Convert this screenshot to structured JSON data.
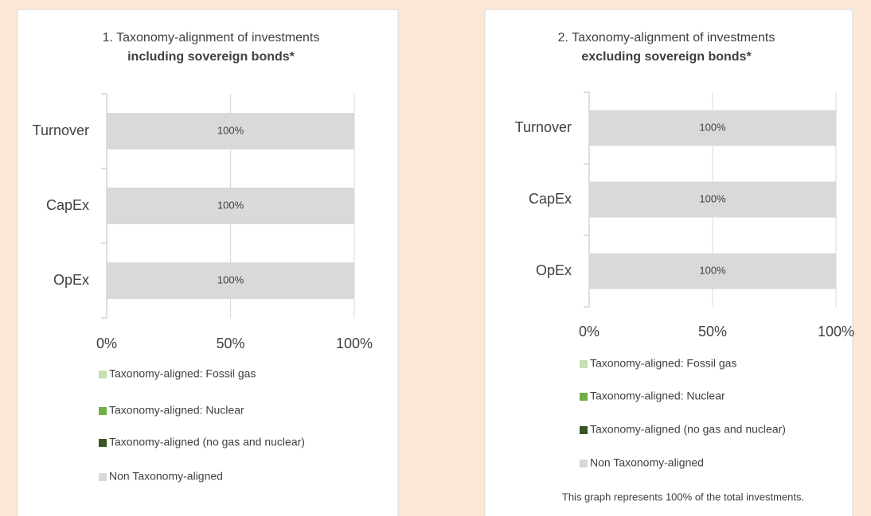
{
  "chart_data": [
    {
      "type": "stacked-bar-horizontal",
      "title": "1. Taxonomy-alignment of investments",
      "subtitle": "including sovereign bonds*",
      "categories": [
        "Turnover",
        "CapEx",
        "OpEx"
      ],
      "series": [
        {
          "name": "Taxonomy-aligned: Fossil gas",
          "color": "#c5e0b3",
          "values": [
            0,
            0,
            0
          ]
        },
        {
          "name": "Taxonomy-aligned: Nuclear",
          "color": "#70ad47",
          "values": [
            0,
            0,
            0
          ]
        },
        {
          "name": "Taxonomy-aligned (no gas and nuclear)",
          "color": "#375623",
          "values": [
            0,
            0,
            0
          ]
        },
        {
          "name": "Non Taxonomy-aligned",
          "color": "#d9d9d9",
          "values": [
            100,
            100,
            100
          ],
          "value_labels": [
            "100%",
            "100%",
            "100%"
          ]
        }
      ],
      "xlim": [
        0,
        100
      ],
      "xticks": [
        {
          "value": 0,
          "label": "0%"
        },
        {
          "value": 50,
          "label": "50%"
        },
        {
          "value": 100,
          "label": "100%"
        }
      ],
      "grid": true
    },
    {
      "type": "stacked-bar-horizontal",
      "title": "2. Taxonomy-alignment of investments",
      "subtitle": "excluding sovereign bonds*",
      "categories": [
        "Turnover",
        "CapEx",
        "OpEx"
      ],
      "series": [
        {
          "name": "Taxonomy-aligned: Fossil gas",
          "color": "#c5e0b3",
          "values": [
            0,
            0,
            0
          ]
        },
        {
          "name": "Taxonomy-aligned: Nuclear",
          "color": "#70ad47",
          "values": [
            0,
            0,
            0
          ]
        },
        {
          "name": "Taxonomy-aligned (no gas and nuclear)",
          "color": "#375623",
          "values": [
            0,
            0,
            0
          ]
        },
        {
          "name": "Non Taxonomy-aligned",
          "color": "#d9d9d9",
          "values": [
            100,
            100,
            100
          ],
          "value_labels": [
            "100%",
            "100%",
            "100%"
          ]
        }
      ],
      "xlim": [
        0,
        100
      ],
      "xticks": [
        {
          "value": 0,
          "label": "0%"
        },
        {
          "value": 50,
          "label": "50%"
        },
        {
          "value": 100,
          "label": "100%"
        }
      ],
      "grid": true,
      "note": "This graph represents 100% of the total investments."
    }
  ]
}
